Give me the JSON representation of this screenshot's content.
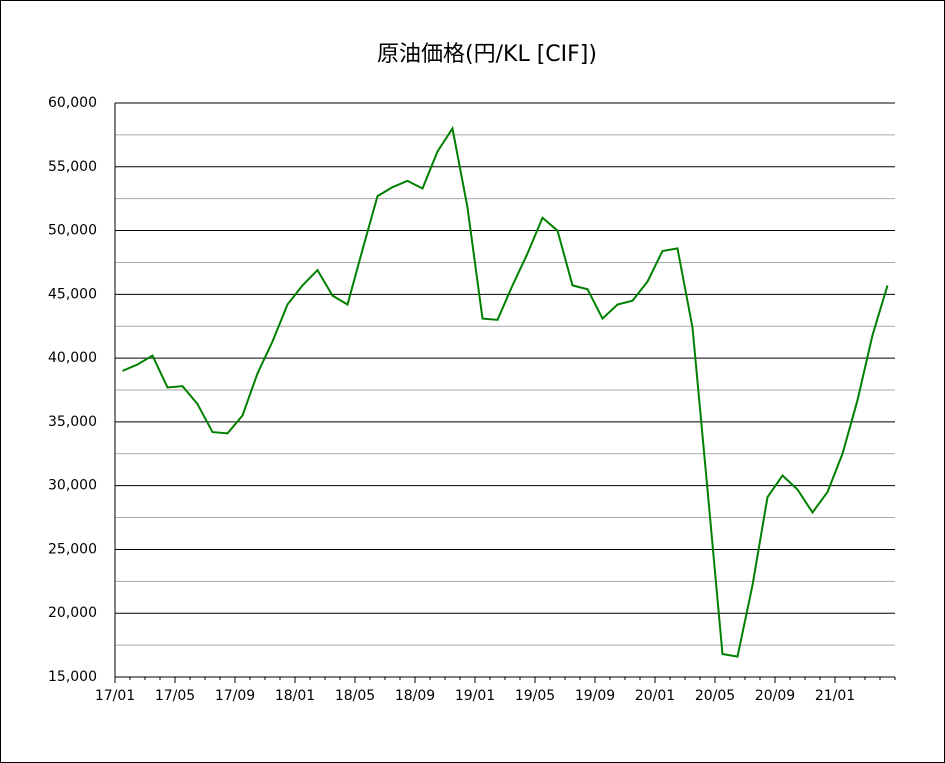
{
  "chart_data": {
    "type": "line",
    "title": "原油価格(円/KL [CIF])",
    "categories": [
      "17/01",
      null,
      null,
      null,
      "17/05",
      null,
      null,
      null,
      "17/09",
      null,
      null,
      null,
      "18/01",
      null,
      null,
      null,
      "18/05",
      null,
      null,
      null,
      "18/09",
      null,
      null,
      null,
      "19/01",
      null,
      null,
      null,
      "19/05",
      null,
      null,
      null,
      "19/09",
      null,
      null,
      null,
      "20/01",
      null,
      null,
      null,
      "20/05",
      null,
      null,
      null,
      "20/09",
      null,
      null,
      null,
      "21/01",
      null,
      null,
      null
    ],
    "series": [
      {
        "color": "#008000",
        "values": [
          39000,
          39500,
          40200,
          37700,
          37800,
          36400,
          34200,
          34100,
          35500,
          38800,
          41300,
          44200,
          45700,
          46900,
          44900,
          44200,
          48500,
          52700,
          53400,
          53900,
          53300,
          56200,
          58000,
          51800,
          43100,
          43000,
          45700,
          48200,
          51000,
          50000,
          45700,
          45400,
          43100,
          44200,
          44500,
          46000,
          48400,
          48600,
          42400,
          29700,
          16800,
          16600,
          22200,
          29100,
          30800,
          29700,
          27900,
          29500,
          32500,
          36700,
          41800,
          45700
        ]
      }
    ],
    "ylim": [
      15000,
      60000
    ],
    "yticks": [
      {
        "value": 15000,
        "label": "15,000"
      },
      {
        "value": 20000,
        "label": "20,000"
      },
      {
        "value": 25000,
        "label": "25,000"
      },
      {
        "value": 30000,
        "label": "30,000"
      },
      {
        "value": 35000,
        "label": "35,000"
      },
      {
        "value": 40000,
        "label": "40,000"
      },
      {
        "value": 45000,
        "label": "45,000"
      },
      {
        "value": 50000,
        "label": "50,000"
      },
      {
        "value": 55000,
        "label": "55,000"
      },
      {
        "value": 60000,
        "label": "60,000"
      }
    ],
    "grid": true,
    "minor_grid": true
  }
}
